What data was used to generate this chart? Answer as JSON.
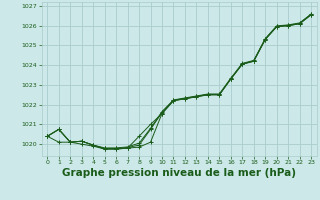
{
  "bg_color": "#cce8e8",
  "grid_color": "#aacccc",
  "line_color": "#1a5c1a",
  "title": "Graphe pression niveau de la mer (hPa)",
  "title_fontsize": 7.5,
  "xlim": [
    -0.5,
    23.5
  ],
  "ylim": [
    1019.4,
    1027.2
  ],
  "yticks": [
    1020,
    1021,
    1022,
    1023,
    1024,
    1025,
    1026,
    1027
  ],
  "xticks": [
    0,
    1,
    2,
    3,
    4,
    5,
    6,
    7,
    8,
    9,
    10,
    11,
    12,
    13,
    14,
    15,
    16,
    17,
    18,
    19,
    20,
    21,
    22,
    23
  ],
  "series": [
    [
      1020.4,
      1020.75,
      1020.1,
      1020.15,
      1019.95,
      1019.75,
      1019.75,
      1019.8,
      1019.85,
      1020.1,
      1021.55,
      1022.2,
      1022.3,
      1022.4,
      1022.5,
      1022.5,
      1023.3,
      1024.05,
      1024.2,
      1025.3,
      1025.95,
      1026.0,
      1026.1,
      1026.55
    ],
    [
      1020.4,
      1020.75,
      1020.1,
      1020.15,
      1019.95,
      1019.78,
      1019.78,
      1019.83,
      1019.95,
      1020.75,
      1021.6,
      1022.22,
      1022.32,
      1022.42,
      1022.52,
      1022.52,
      1023.32,
      1024.07,
      1024.22,
      1025.32,
      1025.97,
      1026.02,
      1026.12,
      1026.57
    ],
    [
      1020.4,
      1020.75,
      1020.1,
      1020.15,
      1019.95,
      1019.81,
      1019.81,
      1019.86,
      1020.05,
      1020.8,
      1021.65,
      1022.24,
      1022.34,
      1022.44,
      1022.54,
      1022.54,
      1023.34,
      1024.09,
      1024.24,
      1025.34,
      1025.99,
      1026.04,
      1026.14,
      1026.59
    ],
    [
      1020.4,
      1020.1,
      1020.1,
      1020.0,
      1019.9,
      1019.75,
      1019.75,
      1019.8,
      1020.4,
      1021.0,
      1021.55,
      1022.2,
      1022.3,
      1022.4,
      1022.5,
      1022.5,
      1023.3,
      1024.05,
      1024.2,
      1025.3,
      1025.95,
      1026.0,
      1026.1,
      1026.55
    ]
  ]
}
